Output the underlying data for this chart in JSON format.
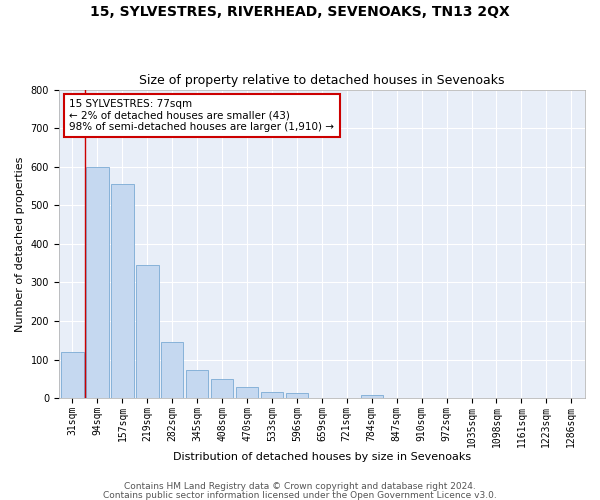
{
  "title": "15, SYLVESTRES, RIVERHEAD, SEVENOAKS, TN13 2QX",
  "subtitle": "Size of property relative to detached houses in Sevenoaks",
  "xlabel": "Distribution of detached houses by size in Sevenoaks",
  "ylabel": "Number of detached properties",
  "bar_labels": [
    "31sqm",
    "94sqm",
    "157sqm",
    "219sqm",
    "282sqm",
    "345sqm",
    "408sqm",
    "470sqm",
    "533sqm",
    "596sqm",
    "659sqm",
    "721sqm",
    "784sqm",
    "847sqm",
    "910sqm",
    "972sqm",
    "1035sqm",
    "1098sqm",
    "1161sqm",
    "1223sqm",
    "1286sqm"
  ],
  "bar_values": [
    120,
    600,
    555,
    345,
    145,
    73,
    50,
    30,
    16,
    14,
    0,
    0,
    9,
    0,
    0,
    0,
    0,
    0,
    0,
    0,
    0
  ],
  "bar_color": "#c5d8f0",
  "bar_edge_color": "#7aaad4",
  "annotation_text": "15 SYLVESTRES: 77sqm\n← 2% of detached houses are smaller (43)\n98% of semi-detached houses are larger (1,910) →",
  "annotation_box_color": "#ffffff",
  "annotation_box_edge_color": "#cc0000",
  "vline_x": 0.5,
  "vline_color": "#cc0000",
  "ylim": [
    0,
    800
  ],
  "yticks": [
    0,
    100,
    200,
    300,
    400,
    500,
    600,
    700,
    800
  ],
  "footnote1": "Contains HM Land Registry data © Crown copyright and database right 2024.",
  "footnote2": "Contains public sector information licensed under the Open Government Licence v3.0.",
  "bg_color": "#e8eef8",
  "grid_color": "#ffffff",
  "fig_bg_color": "#ffffff",
  "title_fontsize": 10,
  "subtitle_fontsize": 9,
  "axis_label_fontsize": 8,
  "tick_fontsize": 7,
  "annotation_fontsize": 7.5,
  "footnote_fontsize": 6.5
}
